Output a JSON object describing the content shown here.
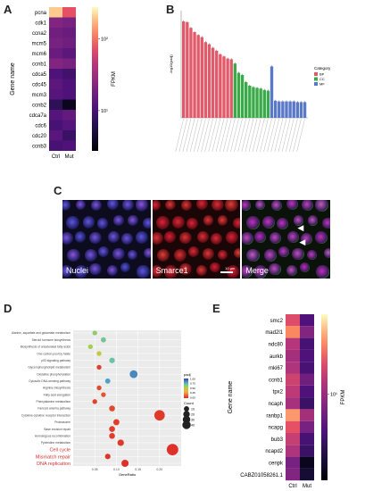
{
  "panels": {
    "a": "A",
    "b": "B",
    "c": "C",
    "d": "D",
    "e": "E"
  },
  "panel_a": {
    "ylabel": "Gene name",
    "colorbar_label": "FPKM",
    "colorbar_ticks": [
      "10²",
      "10¹"
    ],
    "columns": [
      "Ctrl",
      "Mut"
    ],
    "genes": [
      "pcna",
      "cdk1",
      "ccna2",
      "mcm5",
      "mcm6",
      "ccnb1",
      "cdca5",
      "cdc45",
      "mcm3",
      "ccnb2",
      "cdca7a",
      "cdc6",
      "cdc20",
      "ccnb3"
    ],
    "values": [
      [
        0.93,
        0.72
      ],
      [
        0.45,
        0.42
      ],
      [
        0.4,
        0.38
      ],
      [
        0.42,
        0.4
      ],
      [
        0.38,
        0.34
      ],
      [
        0.45,
        0.43
      ],
      [
        0.3,
        0.26
      ],
      [
        0.34,
        0.3
      ],
      [
        0.32,
        0.3
      ],
      [
        0.2,
        0.06
      ],
      [
        0.32,
        0.36
      ],
      [
        0.28,
        0.32
      ],
      [
        0.33,
        0.24
      ],
      [
        0.28,
        0.3
      ]
    ]
  },
  "panel_b": {
    "ylabel": "-log10(padj)",
    "legend_title": "Category",
    "categories": [
      {
        "name": "BP",
        "color": "#e05a6a"
      },
      {
        "name": "CC",
        "color": "#3aaa48"
      },
      {
        "name": "MF",
        "color": "#5a78c8"
      }
    ],
    "bars": [
      {
        "cat": "BP",
        "value": 13.5
      },
      {
        "cat": "BP",
        "value": 13.4
      },
      {
        "cat": "BP",
        "value": 12.6
      },
      {
        "cat": "BP",
        "value": 12.0
      },
      {
        "cat": "BP",
        "value": 11.6
      },
      {
        "cat": "BP",
        "value": 11.3
      },
      {
        "cat": "BP",
        "value": 10.6
      },
      {
        "cat": "BP",
        "value": 10.3
      },
      {
        "cat": "BP",
        "value": 9.8
      },
      {
        "cat": "BP",
        "value": 9.4
      },
      {
        "cat": "BP",
        "value": 8.9
      },
      {
        "cat": "BP",
        "value": 8.6
      },
      {
        "cat": "BP",
        "value": 8.3
      },
      {
        "cat": "BP",
        "value": 8.2
      },
      {
        "cat": "CC",
        "value": 7.6
      },
      {
        "cat": "CC",
        "value": 6.3
      },
      {
        "cat": "CC",
        "value": 6.0
      },
      {
        "cat": "CC",
        "value": 5.0
      },
      {
        "cat": "CC",
        "value": 4.5
      },
      {
        "cat": "CC",
        "value": 4.3
      },
      {
        "cat": "CC",
        "value": 4.2
      },
      {
        "cat": "CC",
        "value": 4.1
      },
      {
        "cat": "CC",
        "value": 3.9
      },
      {
        "cat": "CC",
        "value": 3.8
      },
      {
        "cat": "MF",
        "value": 7.2
      },
      {
        "cat": "MF",
        "value": 2.4
      },
      {
        "cat": "MF",
        "value": 2.3
      },
      {
        "cat": "MF",
        "value": 2.3
      },
      {
        "cat": "MF",
        "value": 2.3
      },
      {
        "cat": "MF",
        "value": 2.3
      },
      {
        "cat": "MF",
        "value": 2.3
      },
      {
        "cat": "MF",
        "value": 2.2
      },
      {
        "cat": "MF",
        "value": 2.2
      },
      {
        "cat": "MF",
        "value": 2.2
      }
    ]
  },
  "panel_c": {
    "labels": [
      "Nuclei",
      "Smarce1",
      "Merge"
    ],
    "scale": "10 µm"
  },
  "chart_data": {
    "type": "scatter",
    "xlabel": "GeneRatio",
    "x_ticks": [
      "0.05",
      "0.10",
      "0.15",
      "0.20"
    ],
    "xlim": [
      0.0,
      0.25
    ],
    "color_label": "padj",
    "color_ticks": [
      "1.00",
      "0.75",
      "0.50",
      "0.25",
      "0.00"
    ],
    "size_label": "Count",
    "size_ticks": [
      "10",
      "20",
      "30",
      "40"
    ],
    "pathways": [
      {
        "name": "Alanine, aspartate and glutamate metabolism",
        "x": 0.05,
        "count": 3,
        "padj": 0.62,
        "highlight": false
      },
      {
        "name": "Steroid hormone biosynthesis",
        "x": 0.07,
        "count": 4,
        "padj": 0.68,
        "highlight": false
      },
      {
        "name": "Biosynthesis of unsaturated fatty acids",
        "x": 0.04,
        "count": 3,
        "padj": 0.58,
        "highlight": false
      },
      {
        "name": "One carbon pool by folate",
        "x": 0.06,
        "count": 3,
        "padj": 0.5,
        "highlight": false
      },
      {
        "name": "p53 signaling pathway",
        "x": 0.09,
        "count": 5,
        "padj": 0.7,
        "highlight": false
      },
      {
        "name": "Glycerophospholipid metabolism",
        "x": 0.06,
        "count": 3,
        "padj": 0.05,
        "highlight": false
      },
      {
        "name": "Oxidative phosphorylation",
        "x": 0.14,
        "count": 14,
        "padj": 0.85,
        "highlight": false
      },
      {
        "name": "Cytosolic DNA-sensing pathway",
        "x": 0.08,
        "count": 4,
        "padj": 0.8,
        "highlight": false
      },
      {
        "name": "Arginine biosynthesis",
        "x": 0.06,
        "count": 3,
        "padj": 0.08,
        "highlight": false
      },
      {
        "name": "Fatty acid elongation",
        "x": 0.07,
        "count": 3,
        "padj": 0.1,
        "highlight": false
      },
      {
        "name": "Phenylalanine metabolism",
        "x": 0.05,
        "count": 3,
        "padj": 0.06,
        "highlight": false
      },
      {
        "name": "Fanconi anemia pathway",
        "x": 0.09,
        "count": 6,
        "padj": 0.08,
        "highlight": false
      },
      {
        "name": "Cytokine-cytokine receptor interaction",
        "x": 0.2,
        "count": 30,
        "padj": 0.04,
        "highlight": false
      },
      {
        "name": "Proteasome",
        "x": 0.1,
        "count": 7,
        "padj": 0.05,
        "highlight": false
      },
      {
        "name": "Base excision repair",
        "x": 0.09,
        "count": 6,
        "padj": 0.05,
        "highlight": false
      },
      {
        "name": "Homologous recombination",
        "x": 0.09,
        "count": 6,
        "padj": 0.05,
        "highlight": false
      },
      {
        "name": "Pyrimidine metabolism",
        "x": 0.11,
        "count": 8,
        "padj": 0.04,
        "highlight": false
      },
      {
        "name": "Cell cycle",
        "x": 0.23,
        "count": 38,
        "padj": 0.02,
        "highlight": true
      },
      {
        "name": "Mismatch repair",
        "x": 0.08,
        "count": 5,
        "padj": 0.03,
        "highlight": true
      },
      {
        "name": "DNA replication",
        "x": 0.12,
        "count": 11,
        "padj": 0.02,
        "highlight": true
      }
    ]
  },
  "panel_e": {
    "ylabel": "Gene name",
    "colorbar_label": "FPKM",
    "colorbar_ticks": [
      "10¹"
    ],
    "columns": [
      "Ctrl",
      "Mut"
    ],
    "genes": [
      "smc2",
      "mad2l1",
      "ndc80",
      "aurkb",
      "mki67",
      "ccnb1",
      "tpx2",
      "ncaph",
      "ranbp1",
      "ncapg",
      "bub3",
      "ncapd2",
      "cenpk",
      "CABZ01058261.1"
    ],
    "values": [
      [
        0.7,
        0.3
      ],
      [
        0.82,
        0.45
      ],
      [
        0.6,
        0.28
      ],
      [
        0.55,
        0.3
      ],
      [
        0.58,
        0.28
      ],
      [
        0.66,
        0.4
      ],
      [
        0.62,
        0.3
      ],
      [
        0.56,
        0.24
      ],
      [
        0.85,
        0.55
      ],
      [
        0.72,
        0.42
      ],
      [
        0.64,
        0.28
      ],
      [
        0.58,
        0.24
      ],
      [
        0.42,
        0.06
      ],
      [
        0.45,
        0.12
      ]
    ]
  },
  "colors": {
    "accent_red": "#d03030"
  }
}
